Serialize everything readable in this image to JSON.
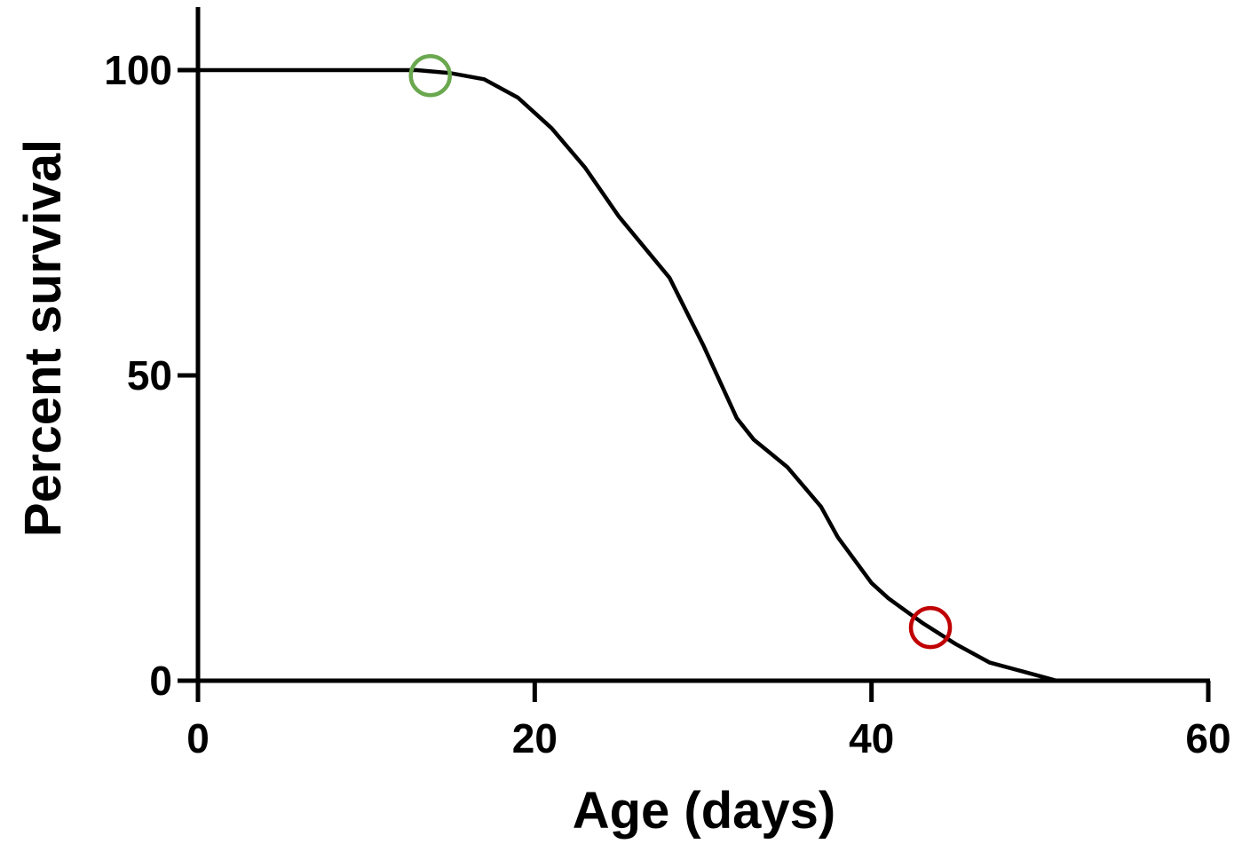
{
  "chart_data": {
    "type": "line",
    "title": "",
    "xlabel": "Age (days)",
    "ylabel": "Percent survival",
    "xlim": [
      0,
      60
    ],
    "ylim": [
      0,
      100
    ],
    "x_ticks": [
      0,
      20,
      40,
      60
    ],
    "y_ticks": [
      0,
      50,
      100
    ],
    "x_tick_labels": [
      "0",
      "20",
      "40",
      "60"
    ],
    "y_tick_labels": [
      "0",
      "50",
      "100"
    ],
    "grid": false,
    "series": [
      {
        "color": "#000000",
        "x": [
          0,
          13,
          15,
          17,
          19,
          21,
          23,
          25,
          28,
          30,
          32,
          33,
          35,
          37,
          38,
          40,
          41,
          43,
          45,
          47,
          49,
          51
        ],
        "y": [
          100,
          100,
          99.5,
          98.5,
          95.5,
          90.5,
          84,
          76,
          66,
          55,
          43,
          39.5,
          35,
          28.5,
          23.5,
          16,
          13.5,
          9.5,
          6,
          3,
          1.5,
          0
        ]
      }
    ],
    "markers": [
      {
        "x": 13.8,
        "y": 99.1,
        "color": "#6aa84f",
        "shape": "open-circle"
      },
      {
        "x": 43.5,
        "y": 8.7,
        "color": "#c00000",
        "shape": "open-circle"
      }
    ]
  }
}
